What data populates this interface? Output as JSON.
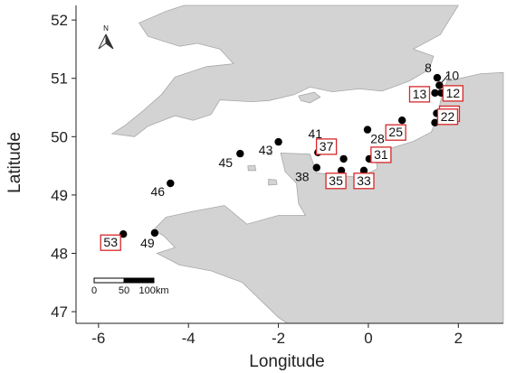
{
  "map": {
    "x_axis_title": "Longitude",
    "y_axis_title": "Latitude",
    "x_ticks": [
      -6,
      -4,
      -2,
      0,
      2
    ],
    "y_ticks": [
      47,
      48,
      49,
      50,
      51,
      52
    ],
    "x_range": [
      -6.5,
      3.0
    ],
    "y_range": [
      46.8,
      52.25
    ],
    "land_color": "#d3d3d3",
    "land_stroke": "#a8a8a8",
    "point_color": "#000000",
    "highlight_box_color": "#d62728",
    "north_arrow_label": "N",
    "scale_bar": {
      "labels": [
        "0",
        "50",
        "100km"
      ]
    },
    "sites": [
      {
        "id": "8",
        "lon": 1.53,
        "lat": 51.01,
        "highlight": false
      },
      {
        "id": "10",
        "lon": 1.58,
        "lat": 50.88,
        "highlight": false
      },
      {
        "id": "13",
        "lon": 1.48,
        "lat": 50.75,
        "highlight": true
      },
      {
        "id": "12",
        "lon": 1.62,
        "lat": 50.75,
        "highlight": true
      },
      {
        "id": "18",
        "lon": 1.52,
        "lat": 50.4,
        "highlight": true
      },
      {
        "id": "22",
        "lon": 1.48,
        "lat": 50.24,
        "highlight": true
      },
      {
        "id": "25",
        "lon": 0.75,
        "lat": 50.28,
        "highlight": true
      },
      {
        "id": "28",
        "lon": -0.02,
        "lat": 50.12,
        "highlight": false
      },
      {
        "id": "37",
        "lon": -0.55,
        "lat": 49.62,
        "highlight": true
      },
      {
        "id": "41",
        "lon": -1.12,
        "lat": 49.73,
        "highlight": false
      },
      {
        "id": "31",
        "lon": 0.02,
        "lat": 49.62,
        "highlight": true
      },
      {
        "id": "35",
        "lon": -0.6,
        "lat": 49.42,
        "highlight": true
      },
      {
        "id": "33",
        "lon": -0.1,
        "lat": 49.42,
        "highlight": true
      },
      {
        "id": "38",
        "lon": -1.15,
        "lat": 49.47,
        "highlight": false
      },
      {
        "id": "43",
        "lon": -2.0,
        "lat": 49.91,
        "highlight": false
      },
      {
        "id": "45",
        "lon": -2.85,
        "lat": 49.71,
        "highlight": false
      },
      {
        "id": "46",
        "lon": -4.4,
        "lat": 49.2,
        "highlight": false
      },
      {
        "id": "49",
        "lon": -4.75,
        "lat": 48.35,
        "highlight": false
      },
      {
        "id": "53",
        "lon": -5.45,
        "lat": 48.33,
        "highlight": true
      }
    ]
  }
}
